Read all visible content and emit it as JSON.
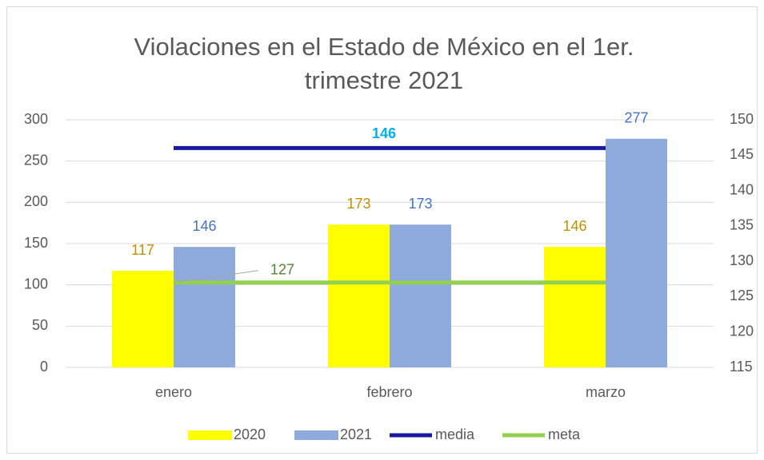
{
  "chart_data": {
    "type": "bar",
    "title": "Violaciones en el Estado de México en el 1er. trimestre 2021",
    "categories": [
      "enero",
      "febrero",
      "marzo"
    ],
    "series": [
      {
        "name": "2020",
        "color": "#ffff00",
        "label_color": "#bf9000",
        "values": [
          117,
          173,
          146
        ]
      },
      {
        "name": "2021",
        "color": "#8faadc",
        "label_color": "#4472c4",
        "values": [
          146,
          173,
          277
        ]
      },
      {
        "name": "media",
        "type": "line",
        "axis": "y2",
        "color": "#1a1aa0",
        "label_color": "#00b0f0",
        "values": [
          146,
          146,
          146
        ]
      },
      {
        "name": "meta",
        "type": "line",
        "axis": "y2",
        "color": "#92d050",
        "label_color": "#548235",
        "values": [
          127,
          127,
          127
        ]
      }
    ],
    "ylim": [
      0,
      300
    ],
    "yticks": [
      0,
      50,
      100,
      150,
      200,
      250,
      300
    ],
    "y2lim": [
      115,
      150
    ],
    "y2ticks": [
      115,
      120,
      125,
      130,
      135,
      140,
      145,
      150
    ],
    "grid": true,
    "legend": "bottom"
  }
}
